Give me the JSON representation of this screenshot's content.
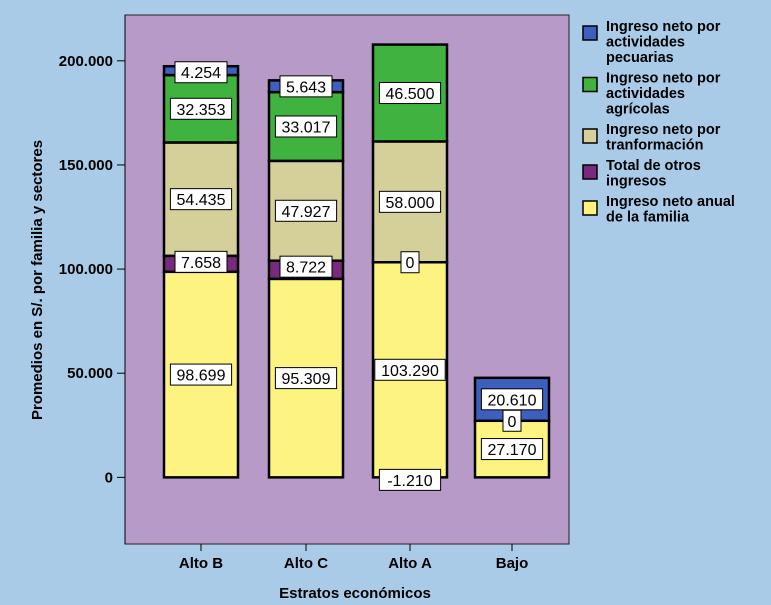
{
  "chart_data": {
    "type": "bar",
    "stacked": true,
    "title": "",
    "xlabel": "Estratos económicos",
    "ylabel": "Promedios en S/. por familia y sectores",
    "ylim": [
      -32000,
      222000
    ],
    "yticks": [
      0,
      50000,
      100000,
      150000,
      200000
    ],
    "ytick_labels": [
      "0",
      "50.000",
      "100.000",
      "150.000",
      "200.000"
    ],
    "grid": false,
    "legend_position": "right",
    "plot_background": "#b79ac8",
    "categories": [
      "Alto B",
      "Alto C",
      "Alto A",
      "Bajo"
    ],
    "series": [
      {
        "name": "Ingreso neto anual de la familia",
        "color": "#fcf380",
        "values": [
          98699,
          95309,
          103290,
          27170
        ],
        "labels": [
          "98.699",
          "95.309",
          "103.290",
          "27.170"
        ]
      },
      {
        "name": "Total de otros ingresos",
        "color": "#7a2a7e",
        "values": [
          7658,
          8722,
          0,
          0
        ],
        "labels": [
          "7.658",
          "8.722",
          "0",
          ""
        ]
      },
      {
        "name": "Ingreso neto por tranformación",
        "color": "#d5cf9a",
        "values": [
          54435,
          47927,
          58000,
          0
        ],
        "labels": [
          "54.435",
          "47.927",
          "58.000",
          ""
        ]
      },
      {
        "name": "Ingreso neto por actividades agrícolas",
        "color": "#3fb23f",
        "values": [
          32353,
          33017,
          46500,
          0
        ],
        "labels": [
          "32.353",
          "33.017",
          "46.500",
          "0"
        ]
      },
      {
        "name": "Ingreso neto por actividades pecuarias",
        "color": "#3f5fbf",
        "values": [
          4254,
          5643,
          0,
          20610
        ],
        "labels": [
          "4.254",
          "5.643",
          "",
          "20.610"
        ]
      }
    ],
    "annotations": [
      {
        "category": "Alto A",
        "value": -1210,
        "label": "-1.210"
      }
    ]
  }
}
